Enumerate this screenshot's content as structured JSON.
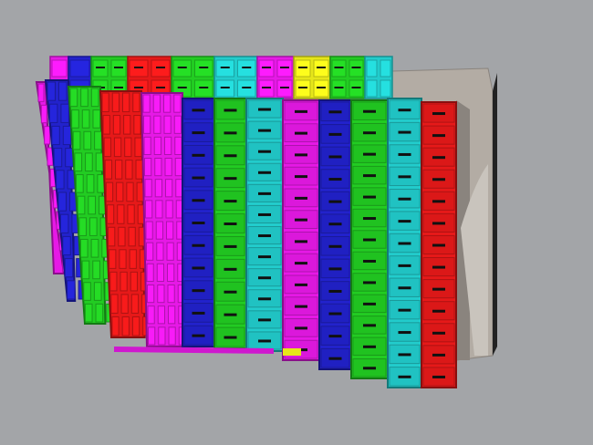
{
  "viewport": {
    "background": "#a3a5a8"
  },
  "colors": {
    "magenta": "#e619e6",
    "blue": "#2222cc",
    "green": "#22cc22",
    "red": "#e61919",
    "cyan": "#22cccc",
    "yellow": "#e6e619",
    "gray": "#b3aca4",
    "dark_gray": "#8a847e",
    "label": "#111111"
  },
  "back_row": [
    "magenta",
    "blue",
    "green",
    "red",
    "green",
    "cyan",
    "magenta",
    "yellow",
    "green",
    "cyan"
  ],
  "front_columns": [
    "magenta",
    "blue",
    "green",
    "red",
    "magenta",
    "blue",
    "green",
    "cyan",
    "magenta",
    "blue",
    "green",
    "cyan",
    "red"
  ]
}
